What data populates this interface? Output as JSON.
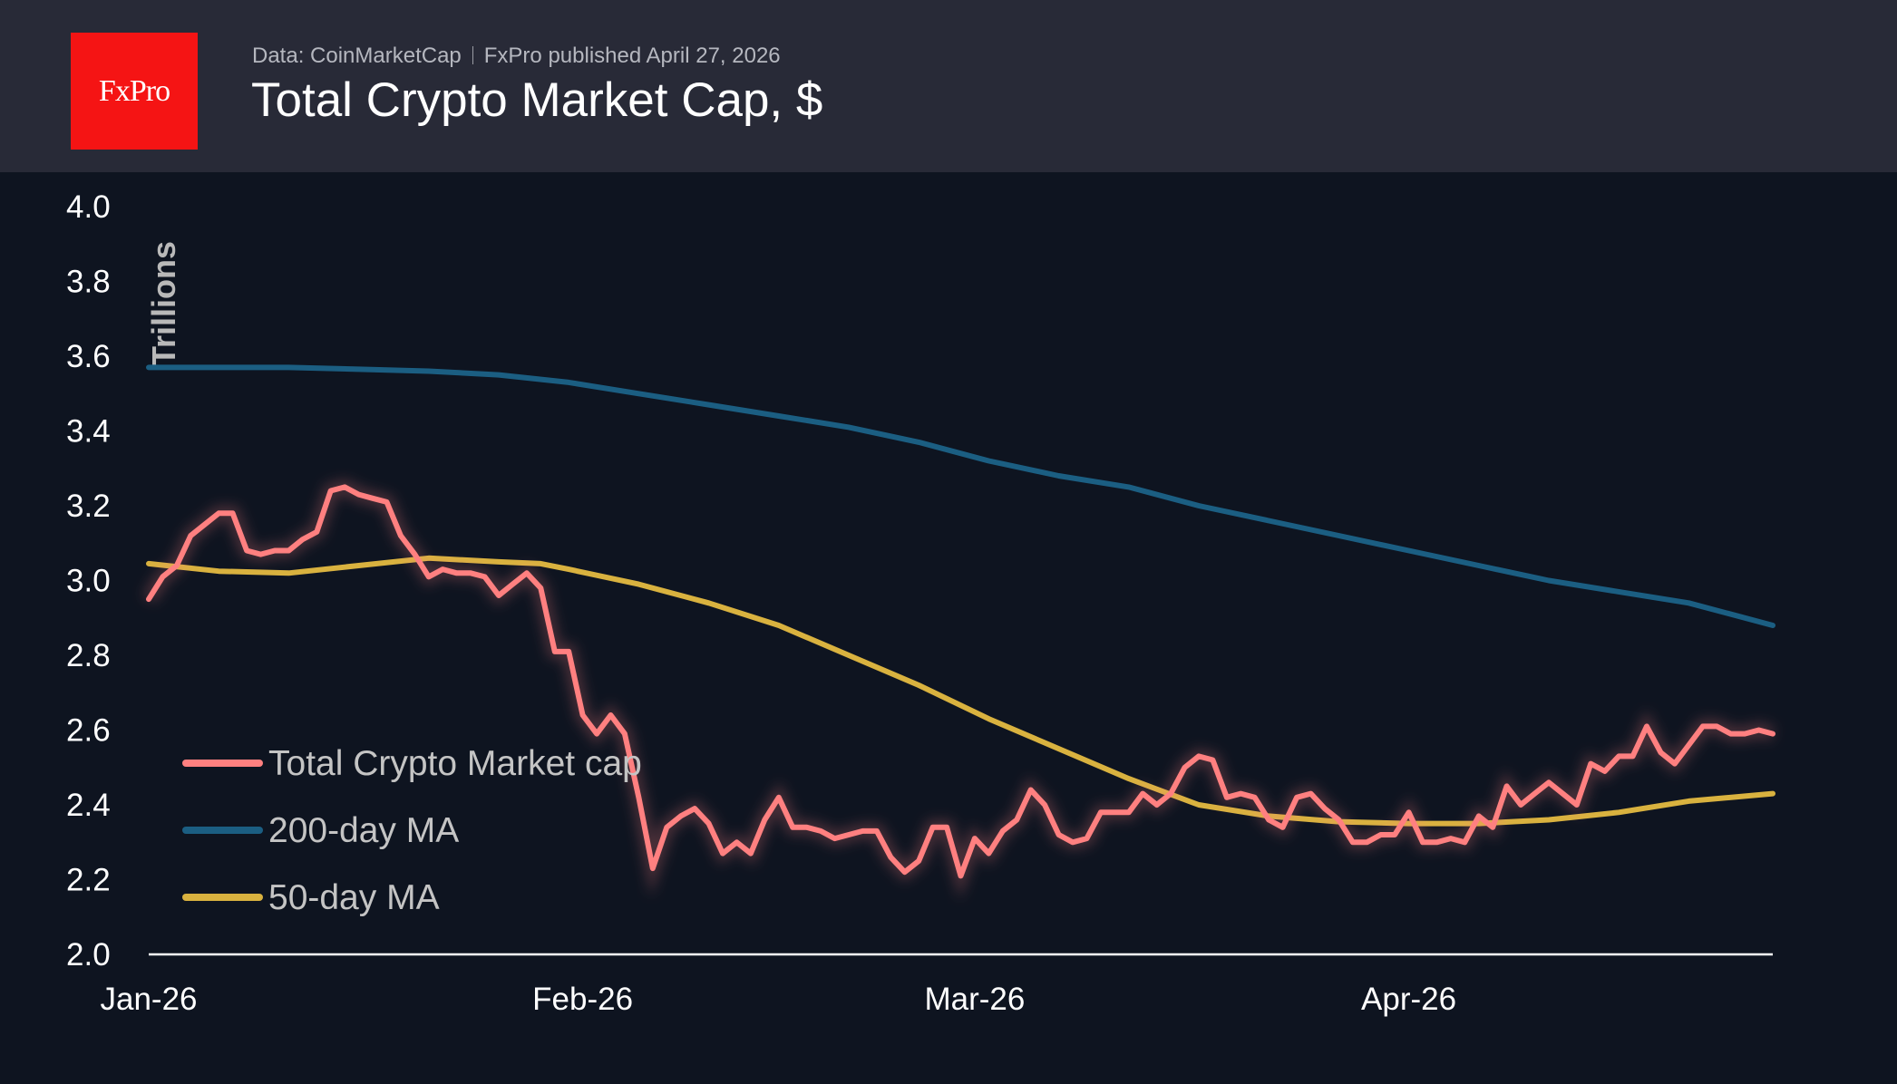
{
  "header": {
    "logo_text": "FxPro",
    "source": "Data: CoinMarketCap",
    "published": "FxPro published April 27, 2026",
    "title": "Total Crypto Market Cap, $"
  },
  "colors": {
    "background": "#0e1420",
    "header": "#282a37",
    "logo": "#f51414",
    "total": "#ff8080",
    "ma200": "#1b5e82",
    "ma50": "#d9b23f"
  },
  "chart_data": {
    "type": "line",
    "title": "Total Crypto Market Cap, $",
    "ylabel": "Trillions",
    "xlabel": "",
    "ylim": [
      2.0,
      4.0
    ],
    "yticks": [
      "2.0",
      "2.2",
      "2.4",
      "2.6",
      "2.8",
      "3.0",
      "3.2",
      "3.4",
      "3.6",
      "3.8",
      "4.0"
    ],
    "xlim": [
      "2026-01-01",
      "2026-04-27"
    ],
    "xticks": [
      {
        "date": "2026-01-01",
        "label": "Jan-26"
      },
      {
        "date": "2026-02-01",
        "label": "Feb-26"
      },
      {
        "date": "2026-03-01",
        "label": "Mar-26"
      },
      {
        "date": "2026-04-01",
        "label": "Apr-26"
      }
    ],
    "grid": false,
    "legend": "bottom-left",
    "series": [
      {
        "name": "Total Crypto Market cap",
        "color": "#ff8080",
        "start": "2026-01-01",
        "frequency": "daily",
        "values": [
          2.95,
          3.01,
          3.04,
          3.12,
          3.15,
          3.18,
          3.18,
          3.08,
          3.07,
          3.08,
          3.08,
          3.11,
          3.13,
          3.24,
          3.25,
          3.23,
          3.22,
          3.21,
          3.12,
          3.07,
          3.01,
          3.03,
          3.02,
          3.02,
          3.01,
          2.96,
          2.99,
          3.02,
          2.98,
          2.81,
          2.81,
          2.64,
          2.59,
          2.64,
          2.59,
          2.42,
          2.23,
          2.34,
          2.37,
          2.39,
          2.35,
          2.27,
          2.3,
          2.27,
          2.36,
          2.42,
          2.34,
          2.34,
          2.33,
          2.31,
          2.32,
          2.33,
          2.33,
          2.26,
          2.22,
          2.25,
          2.34,
          2.34,
          2.21,
          2.31,
          2.27,
          2.33,
          2.36,
          2.44,
          2.4,
          2.32,
          2.3,
          2.31,
          2.38,
          2.38,
          2.38,
          2.43,
          2.4,
          2.43,
          2.5,
          2.53,
          2.52,
          2.42,
          2.43,
          2.42,
          2.36,
          2.34,
          2.42,
          2.43,
          2.39,
          2.36,
          2.3,
          2.3,
          2.32,
          2.32,
          2.38,
          2.3,
          2.3,
          2.31,
          2.3,
          2.37,
          2.34,
          2.45,
          2.4,
          2.43,
          2.46,
          2.43,
          2.4,
          2.51,
          2.49,
          2.53,
          2.53,
          2.61,
          2.54,
          2.51,
          2.56,
          2.61,
          2.61,
          2.59,
          2.59,
          2.6,
          2.59
        ]
      },
      {
        "name": "200-day MA",
        "color": "#1b5e82",
        "points": [
          [
            "2026-01-01",
            3.57
          ],
          [
            "2026-01-06",
            3.57
          ],
          [
            "2026-01-11",
            3.57
          ],
          [
            "2026-01-16",
            3.565
          ],
          [
            "2026-01-21",
            3.56
          ],
          [
            "2026-01-26",
            3.55
          ],
          [
            "2026-01-31",
            3.53
          ],
          [
            "2026-02-05",
            3.5
          ],
          [
            "2026-02-10",
            3.47
          ],
          [
            "2026-02-15",
            3.44
          ],
          [
            "2026-02-20",
            3.41
          ],
          [
            "2026-02-25",
            3.37
          ],
          [
            "2026-03-02",
            3.32
          ],
          [
            "2026-03-07",
            3.28
          ],
          [
            "2026-03-12",
            3.25
          ],
          [
            "2026-03-17",
            3.2
          ],
          [
            "2026-03-22",
            3.16
          ],
          [
            "2026-03-27",
            3.12
          ],
          [
            "2026-04-01",
            3.08
          ],
          [
            "2026-04-06",
            3.04
          ],
          [
            "2026-04-11",
            3.0
          ],
          [
            "2026-04-16",
            2.97
          ],
          [
            "2026-04-21",
            2.94
          ],
          [
            "2026-04-27",
            2.88
          ]
        ]
      },
      {
        "name": "50-day MA",
        "color": "#d9b23f",
        "points": [
          [
            "2026-01-01",
            3.045
          ],
          [
            "2026-01-06",
            3.025
          ],
          [
            "2026-01-11",
            3.02
          ],
          [
            "2026-01-16",
            3.04
          ],
          [
            "2026-01-21",
            3.06
          ],
          [
            "2026-01-26",
            3.05
          ],
          [
            "2026-01-29",
            3.045
          ],
          [
            "2026-01-31",
            3.03
          ],
          [
            "2026-02-05",
            2.99
          ],
          [
            "2026-02-10",
            2.94
          ],
          [
            "2026-02-15",
            2.88
          ],
          [
            "2026-02-20",
            2.8
          ],
          [
            "2026-02-25",
            2.72
          ],
          [
            "2026-03-02",
            2.63
          ],
          [
            "2026-03-07",
            2.55
          ],
          [
            "2026-03-12",
            2.47
          ],
          [
            "2026-03-17",
            2.4
          ],
          [
            "2026-03-22",
            2.37
          ],
          [
            "2026-03-27",
            2.355
          ],
          [
            "2026-04-01",
            2.35
          ],
          [
            "2026-04-06",
            2.35
          ],
          [
            "2026-04-11",
            2.36
          ],
          [
            "2026-04-16",
            2.38
          ],
          [
            "2026-04-21",
            2.41
          ],
          [
            "2026-04-27",
            2.43
          ]
        ]
      }
    ]
  }
}
